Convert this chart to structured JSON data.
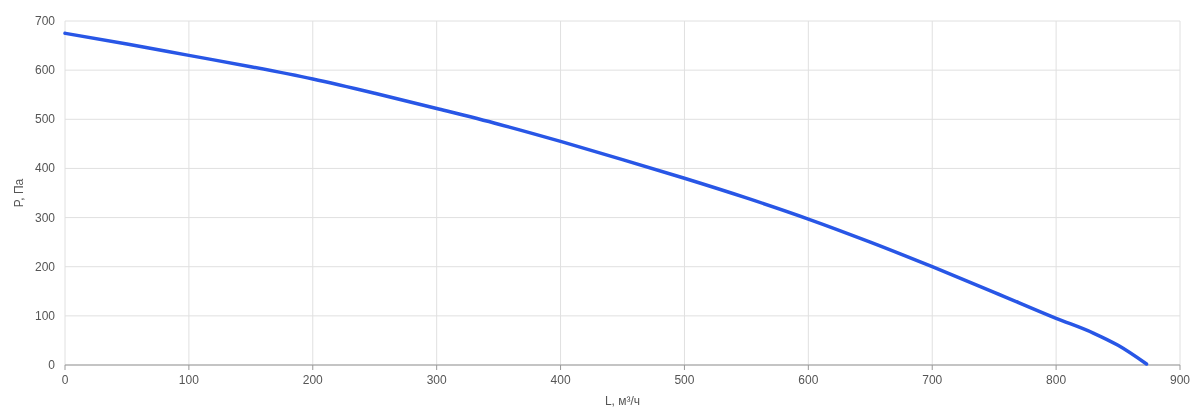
{
  "chart_data": {
    "type": "line",
    "xlabel": "L, м³/ч",
    "ylabel": "P, Па",
    "x": [
      0,
      50,
      100,
      150,
      200,
      250,
      300,
      350,
      400,
      450,
      500,
      550,
      600,
      650,
      700,
      750,
      800,
      830,
      850,
      873
    ],
    "series": [
      {
        "color": "#2856e6",
        "values": [
          675,
          653,
          630,
          607,
          582,
          553,
          522,
          490,
          455,
          418,
          380,
          340,
          297,
          250,
          200,
          148,
          95,
          65,
          40,
          2
        ]
      }
    ],
    "xlim": [
      0,
      900
    ],
    "ylim": [
      0,
      700
    ],
    "xticks": [
      0,
      100,
      200,
      300,
      400,
      500,
      600,
      700,
      800,
      900
    ],
    "yticks": [
      0,
      100,
      200,
      300,
      400,
      500,
      600,
      700
    ],
    "grid": true,
    "marker": "none",
    "line_style": "solid"
  }
}
